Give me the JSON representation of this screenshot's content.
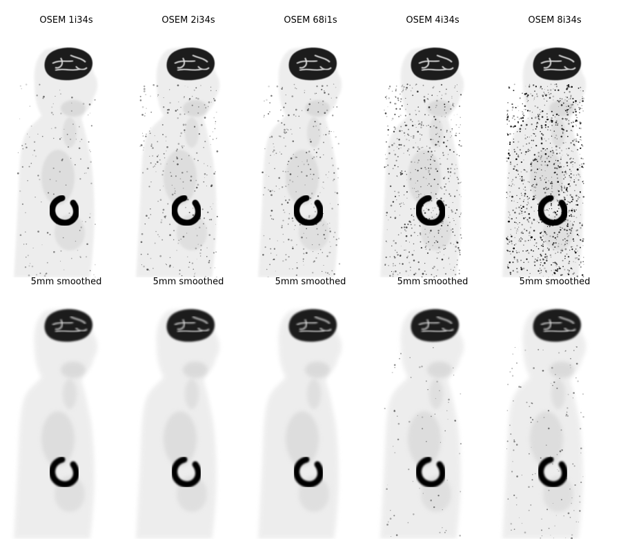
{
  "figure": {
    "rows": [
      {
        "panels": [
          {
            "title": "OSEM 1i34s",
            "noise": 0.1,
            "smooth": false
          },
          {
            "title": "OSEM 2i34s",
            "noise": 0.2,
            "smooth": false
          },
          {
            "title": "OSEM 68i1s",
            "noise": 0.22,
            "smooth": false
          },
          {
            "title": "OSEM 4i34s",
            "noise": 0.42,
            "smooth": false
          },
          {
            "title": "OSEM 8i34s",
            "noise": 0.75,
            "smooth": false
          }
        ]
      },
      {
        "panels": [
          {
            "title": "5mm smoothed",
            "noise": 0.0,
            "smooth": true
          },
          {
            "title": "5mm smoothed",
            "noise": 0.0,
            "smooth": true
          },
          {
            "title": "5mm smoothed",
            "noise": 0.0,
            "smooth": true
          },
          {
            "title": "5mm smoothed",
            "noise": 0.05,
            "smooth": true
          },
          {
            "title": "5mm smoothed",
            "noise": 0.1,
            "smooth": true
          }
        ]
      }
    ],
    "colormap": "grayscale-inverted",
    "icon": "sagittal-pet-body-image"
  }
}
